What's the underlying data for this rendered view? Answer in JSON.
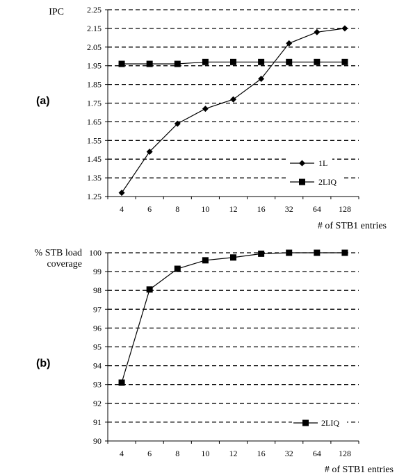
{
  "chart_data": [
    {
      "id": "a",
      "panel_label": "(a)",
      "type": "line",
      "ylabel": "IPC",
      "xlabel": "# of STB1 entries",
      "categories": [
        "4",
        "6",
        "8",
        "10",
        "12",
        "16",
        "32",
        "64",
        "128"
      ],
      "ylim": [
        1.25,
        2.25
      ],
      "yticks": [
        "1.25",
        "1.35",
        "1.45",
        "1.55",
        "1.65",
        "1.75",
        "1.85",
        "1.95",
        "2.05",
        "2.15",
        "2.25"
      ],
      "grid": "dashed horizontal",
      "legend_position": "bottom-right",
      "series": [
        {
          "name": "1L",
          "marker": "diamond",
          "values": [
            1.27,
            1.49,
            1.64,
            1.72,
            1.77,
            1.88,
            2.07,
            2.13,
            2.15
          ]
        },
        {
          "name": "2LIQ",
          "marker": "square",
          "values": [
            1.96,
            1.96,
            1.96,
            1.97,
            1.97,
            1.97,
            1.97,
            1.97,
            1.97
          ]
        }
      ]
    },
    {
      "id": "b",
      "panel_label": "(b)",
      "type": "line",
      "ylabel": [
        "% STB load",
        "coverage"
      ],
      "xlabel": "# of STB1 entries",
      "categories": [
        "4",
        "6",
        "8",
        "10",
        "12",
        "16",
        "32",
        "64",
        "128"
      ],
      "ylim": [
        90,
        100
      ],
      "yticks": [
        "90",
        "91",
        "92",
        "93",
        "94",
        "95",
        "96",
        "97",
        "98",
        "99",
        "100"
      ],
      "grid": "dashed horizontal",
      "legend_position": "bottom-right",
      "series": [
        {
          "name": "2LIQ",
          "marker": "square",
          "values": [
            93.1,
            98.05,
            99.15,
            99.6,
            99.75,
            99.95,
            100,
            100,
            100
          ]
        }
      ]
    }
  ],
  "colors": {
    "line": "#000000",
    "background": "#ffffff"
  }
}
